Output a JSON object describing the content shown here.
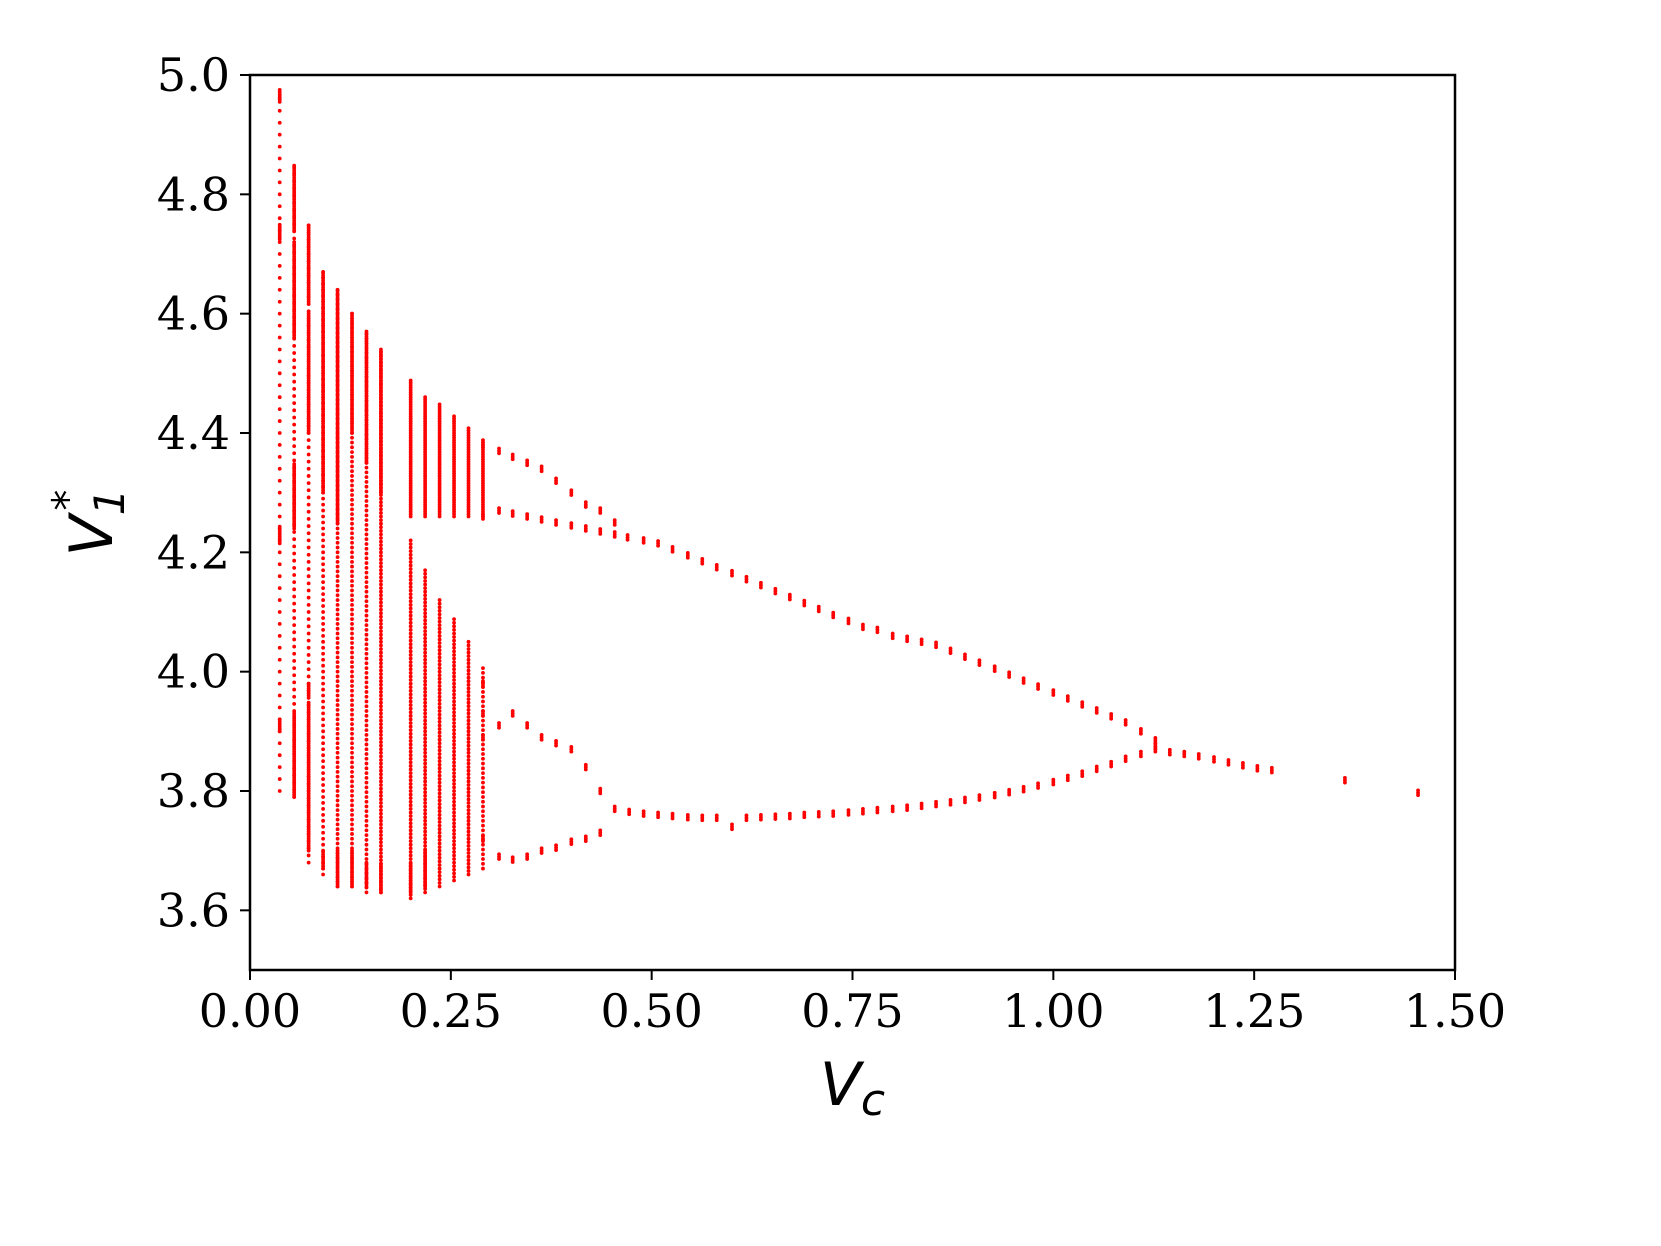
{
  "chart_data": {
    "type": "scatter",
    "title": "",
    "xlabel_main": "V",
    "xlabel_sub": "c",
    "ylabel_main": "V",
    "ylabel_sub": "1",
    "ylabel_sup": "*",
    "xlim": [
      0.0,
      1.5
    ],
    "ylim": [
      3.5,
      5.0
    ],
    "xticks": [
      "0.00",
      "0.25",
      "0.50",
      "0.75",
      "1.00",
      "1.25",
      "1.50"
    ],
    "yticks": [
      "3.6",
      "3.8",
      "4.0",
      "4.2",
      "4.4",
      "4.6",
      "4.8",
      "5.0"
    ],
    "grid": false,
    "marker_color": "#ff0000",
    "series": [
      {
        "dense_bands": [
          {
            "x": 0.037,
            "bands": [
              [
                4.955,
                4.975
              ],
              [
                4.725,
                4.75
              ],
              [
                4.215,
                4.245
              ],
              [
                3.9,
                3.92
              ]
            ]
          },
          {
            "x": 0.055,
            "bands": [
              [
                4.74,
                4.85
              ],
              [
                4.56,
                4.72
              ],
              [
                4.24,
                4.35
              ],
              [
                3.79,
                3.93
              ]
            ]
          },
          {
            "x": 0.073,
            "bands": [
              [
                4.62,
                4.75
              ],
              [
                4.4,
                4.6
              ],
              [
                3.96,
                3.98
              ],
              [
                3.7,
                3.95
              ]
            ]
          },
          {
            "x": 0.091,
            "bands": [
              [
                4.3,
                4.67
              ],
              [
                3.67,
                3.7
              ]
            ]
          },
          {
            "x": 0.109,
            "bands": [
              [
                4.25,
                4.64
              ],
              [
                3.64,
                3.7
              ]
            ]
          },
          {
            "x": 0.127,
            "bands": [
              [
                4.4,
                4.6
              ],
              [
                3.64,
                3.7
              ]
            ]
          },
          {
            "x": 0.145,
            "bands": [
              [
                4.35,
                4.57
              ],
              [
                3.64,
                3.68
              ]
            ]
          },
          {
            "x": 0.163,
            "bands": [
              [
                4.3,
                4.54
              ],
              [
                3.63,
                3.68
              ]
            ]
          },
          {
            "x": 0.2,
            "bands": [
              [
                4.26,
                4.49
              ],
              [
                3.63,
                3.68
              ]
            ]
          },
          {
            "x": 0.218,
            "bands": [
              [
                4.26,
                4.46
              ],
              [
                3.64,
                3.7
              ]
            ]
          },
          {
            "x": 0.236,
            "bands": [
              [
                4.26,
                4.45
              ]
            ]
          },
          {
            "x": 0.254,
            "bands": [
              [
                4.26,
                4.43
              ]
            ]
          },
          {
            "x": 0.272,
            "bands": [
              [
                4.26,
                4.41
              ]
            ]
          },
          {
            "x": 0.29,
            "bands": [
              [
                4.26,
                4.39
              ]
            ]
          }
        ],
        "sparse_columns": [
          {
            "x": 0.037,
            "range": [
              3.8,
              4.96
            ],
            "step": 0.02
          },
          {
            "x": 0.055,
            "range": [
              3.79,
              4.85
            ],
            "step": 0.012
          },
          {
            "x": 0.073,
            "range": [
              3.68,
              4.75
            ],
            "step": 0.012
          },
          {
            "x": 0.091,
            "range": [
              3.66,
              4.67
            ],
            "step": 0.01
          },
          {
            "x": 0.109,
            "range": [
              3.64,
              4.64
            ],
            "step": 0.008
          },
          {
            "x": 0.127,
            "range": [
              3.64,
              4.6
            ],
            "step": 0.008
          },
          {
            "x": 0.145,
            "range": [
              3.63,
              4.57
            ],
            "step": 0.008
          },
          {
            "x": 0.163,
            "range": [
              3.63,
              4.54
            ],
            "step": 0.006
          },
          {
            "x": 0.2,
            "range": [
              3.62,
              4.22
            ],
            "step": 0.006
          },
          {
            "x": 0.218,
            "range": [
              3.63,
              4.17
            ],
            "step": 0.006
          },
          {
            "x": 0.236,
            "range": [
              3.64,
              4.12
            ],
            "step": 0.006
          },
          {
            "x": 0.254,
            "range": [
              3.65,
              4.09
            ],
            "step": 0.006
          },
          {
            "x": 0.272,
            "range": [
              3.66,
              4.05
            ],
            "step": 0.006
          },
          {
            "x": 0.29,
            "range": [
              3.67,
              4.01
            ],
            "step": 0.008
          }
        ],
        "upper_branch": [
          [
            0.29,
            4.26
          ],
          [
            0.31,
            4.27
          ],
          [
            0.327,
            4.265
          ],
          [
            0.345,
            4.26
          ],
          [
            0.363,
            4.255
          ],
          [
            0.381,
            4.25
          ],
          [
            0.4,
            4.245
          ],
          [
            0.418,
            4.24
          ],
          [
            0.436,
            4.235
          ],
          [
            0.454,
            4.23
          ],
          [
            0.47,
            4.225
          ],
          [
            0.29,
            4.38
          ],
          [
            0.31,
            4.37
          ],
          [
            0.327,
            4.36
          ],
          [
            0.345,
            4.35
          ],
          [
            0.363,
            4.34
          ],
          [
            0.381,
            4.32
          ],
          [
            0.4,
            4.3
          ],
          [
            0.418,
            4.28
          ],
          [
            0.436,
            4.27
          ],
          [
            0.454,
            4.25
          ],
          [
            0.49,
            4.22
          ],
          [
            0.508,
            4.215
          ],
          [
            0.526,
            4.205
          ],
          [
            0.545,
            4.195
          ],
          [
            0.563,
            4.185
          ],
          [
            0.581,
            4.175
          ],
          [
            0.6,
            4.165
          ],
          [
            0.618,
            4.155
          ],
          [
            0.636,
            4.145
          ],
          [
            0.654,
            4.135
          ],
          [
            0.672,
            4.125
          ],
          [
            0.69,
            4.115
          ],
          [
            0.708,
            4.105
          ],
          [
            0.726,
            4.095
          ],
          [
            0.745,
            4.085
          ],
          [
            0.763,
            4.075
          ],
          [
            0.781,
            4.07
          ],
          [
            0.8,
            4.06
          ],
          [
            0.818,
            4.055
          ],
          [
            0.836,
            4.05
          ],
          [
            0.854,
            4.045
          ],
          [
            0.872,
            4.035
          ],
          [
            0.89,
            4.025
          ],
          [
            0.908,
            4.015
          ],
          [
            0.927,
            4.005
          ],
          [
            0.945,
            3.995
          ],
          [
            0.963,
            3.985
          ],
          [
            0.981,
            3.975
          ],
          [
            1.0,
            3.965
          ],
          [
            1.018,
            3.955
          ],
          [
            1.036,
            3.945
          ],
          [
            1.054,
            3.935
          ],
          [
            1.072,
            3.925
          ],
          [
            1.09,
            3.915
          ],
          [
            1.109,
            3.9
          ],
          [
            1.127,
            3.885
          ]
        ],
        "lower_branch": [
          [
            0.29,
            3.98
          ],
          [
            0.29,
            3.93
          ],
          [
            0.29,
            3.89
          ],
          [
            0.31,
            3.91
          ],
          [
            0.327,
            3.93
          ],
          [
            0.345,
            3.91
          ],
          [
            0.363,
            3.89
          ],
          [
            0.381,
            3.88
          ],
          [
            0.4,
            3.87
          ],
          [
            0.418,
            3.84
          ],
          [
            0.436,
            3.8
          ],
          [
            0.29,
            3.72
          ],
          [
            0.31,
            3.69
          ],
          [
            0.327,
            3.685
          ],
          [
            0.345,
            3.69
          ],
          [
            0.363,
            3.7
          ],
          [
            0.381,
            3.705
          ],
          [
            0.4,
            3.715
          ],
          [
            0.418,
            3.72
          ],
          [
            0.436,
            3.73
          ],
          [
            0.454,
            3.77
          ],
          [
            0.472,
            3.765
          ],
          [
            0.49,
            3.762
          ],
          [
            0.508,
            3.76
          ],
          [
            0.526,
            3.758
          ],
          [
            0.545,
            3.756
          ],
          [
            0.563,
            3.755
          ],
          [
            0.581,
            3.755
          ],
          [
            0.6,
            3.74
          ],
          [
            0.618,
            3.755
          ],
          [
            0.636,
            3.756
          ],
          [
            0.654,
            3.757
          ],
          [
            0.672,
            3.758
          ],
          [
            0.69,
            3.76
          ],
          [
            0.708,
            3.761
          ],
          [
            0.726,
            3.762
          ],
          [
            0.745,
            3.764
          ],
          [
            0.763,
            3.766
          ],
          [
            0.781,
            3.768
          ],
          [
            0.8,
            3.77
          ],
          [
            0.818,
            3.772
          ],
          [
            0.836,
            3.775
          ],
          [
            0.854,
            3.778
          ],
          [
            0.872,
            3.781
          ],
          [
            0.89,
            3.785
          ],
          [
            0.908,
            3.789
          ],
          [
            0.927,
            3.793
          ],
          [
            0.945,
            3.798
          ],
          [
            0.963,
            3.803
          ],
          [
            0.981,
            3.809
          ],
          [
            1.0,
            3.815
          ],
          [
            1.018,
            3.822
          ],
          [
            1.036,
            3.829
          ],
          [
            1.054,
            3.837
          ],
          [
            1.072,
            3.845
          ],
          [
            1.09,
            3.854
          ],
          [
            1.109,
            3.862
          ],
          [
            1.127,
            3.87
          ]
        ],
        "merged_tail": [
          [
            1.127,
            3.875
          ],
          [
            1.145,
            3.865
          ],
          [
            1.163,
            3.862
          ],
          [
            1.181,
            3.858
          ],
          [
            1.2,
            3.853
          ],
          [
            1.218,
            3.848
          ],
          [
            1.236,
            3.843
          ],
          [
            1.254,
            3.838
          ],
          [
            1.272,
            3.835
          ],
          [
            1.363,
            3.818
          ],
          [
            1.454,
            3.797
          ]
        ]
      }
    ]
  }
}
